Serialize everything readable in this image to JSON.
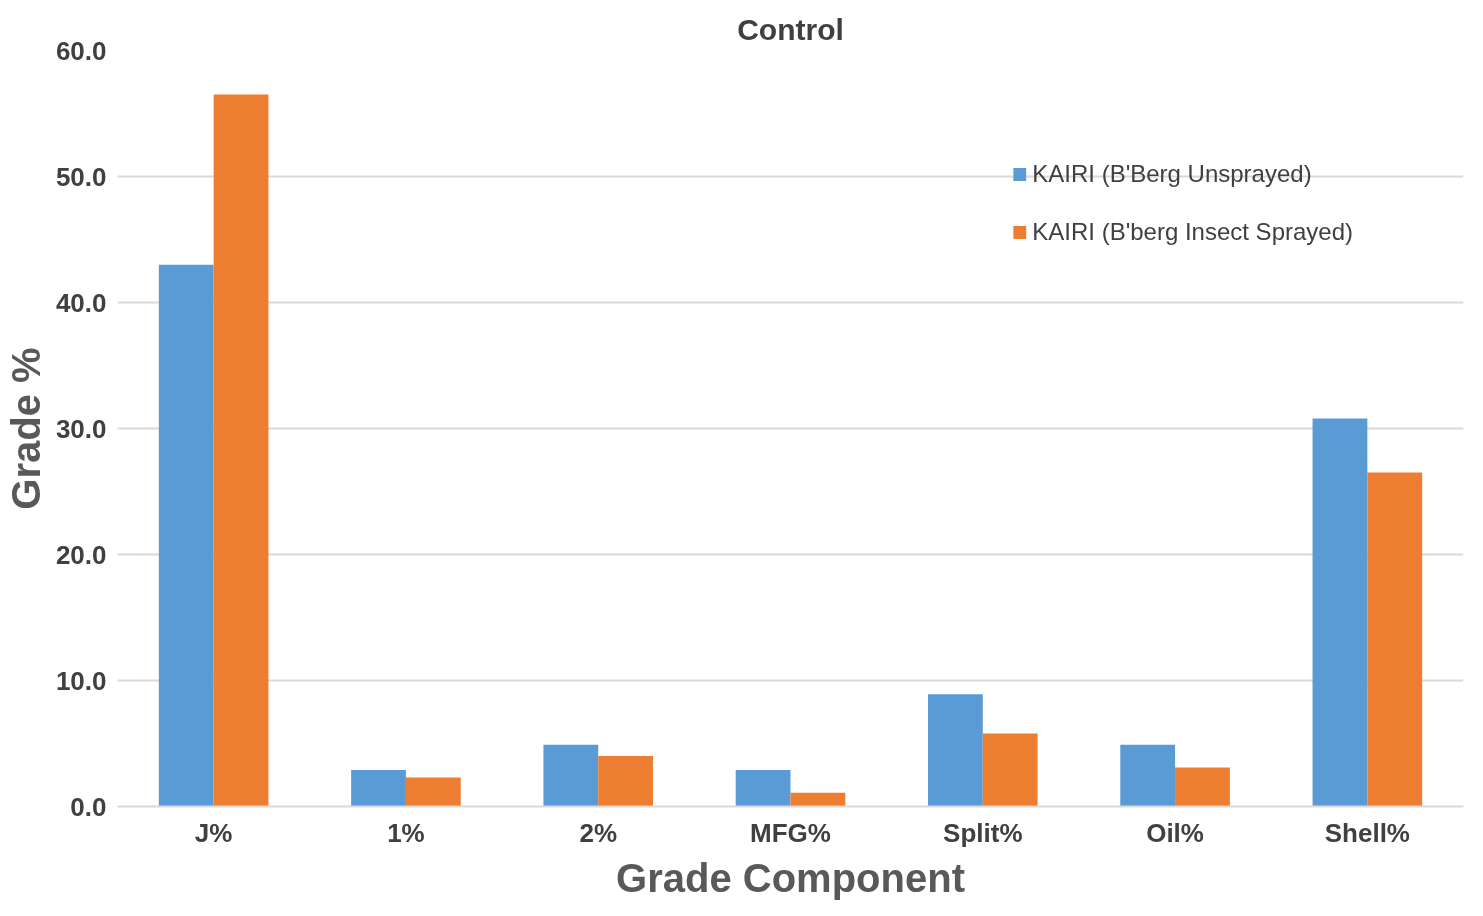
{
  "chart_data": {
    "type": "bar",
    "title": "Control",
    "xlabel": "Grade Component",
    "ylabel": "Grade %",
    "categories": [
      "J%",
      "1%",
      "2%",
      "MFG%",
      "Split%",
      "Oil%",
      "Shell%"
    ],
    "series": [
      {
        "name": "KAIRI (B'Berg Unsprayed)",
        "color": "#5b9bd5",
        "values": [
          43.0,
          2.9,
          4.9,
          2.9,
          8.9,
          4.9,
          30.8
        ]
      },
      {
        "name": "KAIRI (B'berg Insect Sprayed)",
        "color": "#ed7d31",
        "values": [
          56.5,
          2.3,
          4.0,
          1.1,
          5.8,
          3.1,
          26.5
        ]
      }
    ],
    "ylim": [
      0,
      60
    ],
    "yticks": [
      {
        "value": 0,
        "label": "0.0"
      },
      {
        "value": 10,
        "label": "10.0"
      },
      {
        "value": 20,
        "label": "20.0"
      },
      {
        "value": 30,
        "label": "30.0"
      },
      {
        "value": 40,
        "label": "40.0"
      },
      {
        "value": 50,
        "label": "50.0"
      },
      {
        "value": 60,
        "label": "60.0"
      }
    ],
    "grid": "y",
    "legend": "top right"
  }
}
